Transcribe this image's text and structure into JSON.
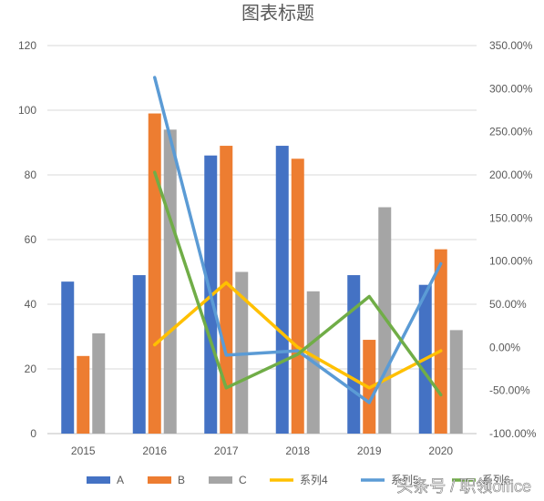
{
  "chart_data": {
    "type": "bar",
    "title": "图表标题",
    "categories": [
      "2015",
      "2016",
      "2017",
      "2018",
      "2019",
      "2020"
    ],
    "bar_series": [
      {
        "name": "A",
        "values": [
          47,
          49,
          86,
          89,
          49,
          46
        ],
        "color": "#4472C4"
      },
      {
        "name": "B",
        "values": [
          24,
          99,
          89,
          85,
          29,
          57
        ],
        "color": "#ED7D31"
      },
      {
        "name": "C",
        "values": [
          31,
          94,
          50,
          44,
          70,
          32
        ],
        "color": "#A5A5A5"
      }
    ],
    "line_series": [
      {
        "name": "系列4",
        "values": [
          null,
          3,
          75,
          0,
          -47,
          -4
        ],
        "color": "#FFC000",
        "axis": "secondary"
      },
      {
        "name": "系列5",
        "values": [
          null,
          313,
          -9,
          -4,
          -64,
          97
        ],
        "color": "#5B9BD5",
        "axis": "secondary"
      },
      {
        "name": "系列6",
        "values": [
          null,
          203,
          -47,
          -8,
          59,
          -55
        ],
        "color": "#70AD47",
        "axis": "secondary"
      }
    ],
    "y_axis": {
      "min": 0,
      "max": 120,
      "step": 20,
      "ticks": [
        "0",
        "20",
        "40",
        "60",
        "80",
        "100",
        "120"
      ]
    },
    "y2_axis": {
      "min": -100,
      "max": 350,
      "step": 50,
      "unit": "%",
      "ticks": [
        "-100.00%",
        "-50.00%",
        "0.00%",
        "50.00%",
        "100.00%",
        "150.00%",
        "200.00%",
        "250.00%",
        "300.00%",
        "350.00%"
      ]
    },
    "grid": true,
    "legend_position": "bottom",
    "watermark": "头条号 / 职领office"
  }
}
